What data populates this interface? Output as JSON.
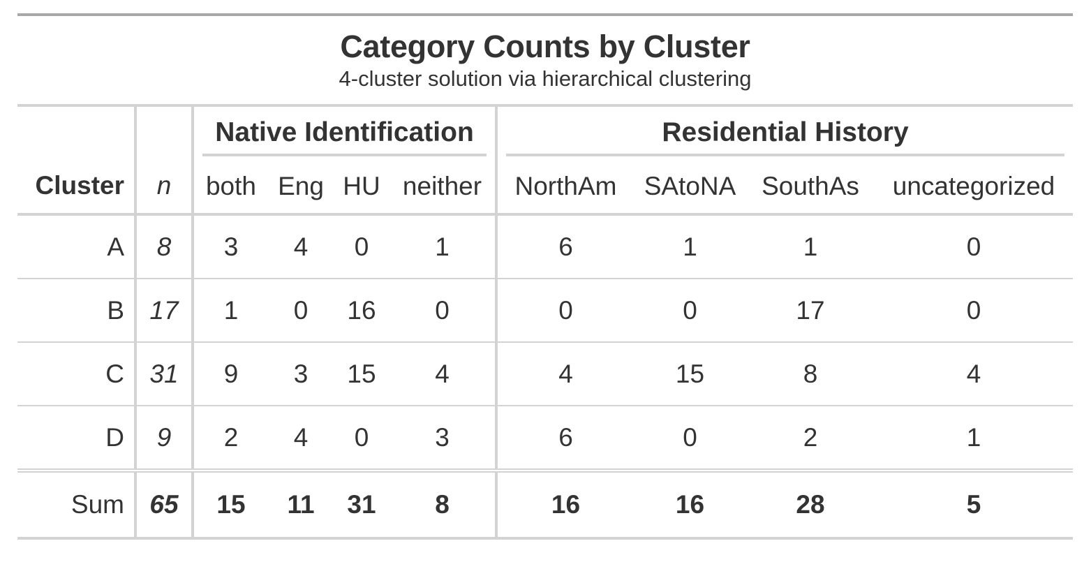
{
  "title": "Category Counts by Cluster",
  "subtitle": "4-cluster solution via hierarchical clustering",
  "spanners": {
    "native": "Native Identification",
    "residential": "Residential History"
  },
  "columns": {
    "cluster": "Cluster",
    "n": "n",
    "both": "both",
    "eng": "Eng",
    "hu": "HU",
    "neither": "neither",
    "northam": "NorthAm",
    "satona": "SAtoNA",
    "southas": "SouthAs",
    "uncategorized": "uncategorized"
  },
  "rows": [
    {
      "cluster": "A",
      "n": "8",
      "both": "3",
      "eng": "4",
      "hu": "0",
      "neither": "1",
      "northam": "6",
      "satona": "1",
      "southas": "1",
      "uncategorized": "0"
    },
    {
      "cluster": "B",
      "n": "17",
      "both": "1",
      "eng": "0",
      "hu": "16",
      "neither": "0",
      "northam": "0",
      "satona": "0",
      "southas": "17",
      "uncategorized": "0"
    },
    {
      "cluster": "C",
      "n": "31",
      "both": "9",
      "eng": "3",
      "hu": "15",
      "neither": "4",
      "northam": "4",
      "satona": "15",
      "southas": "8",
      "uncategorized": "4"
    },
    {
      "cluster": "D",
      "n": "9",
      "both": "2",
      "eng": "4",
      "hu": "0",
      "neither": "3",
      "northam": "6",
      "satona": "0",
      "southas": "2",
      "uncategorized": "1"
    }
  ],
  "summary": {
    "label": "Sum",
    "n": "65",
    "both": "15",
    "eng": "11",
    "hu": "31",
    "neither": "8",
    "northam": "16",
    "satona": "16",
    "southas": "28",
    "uncategorized": "5"
  }
}
